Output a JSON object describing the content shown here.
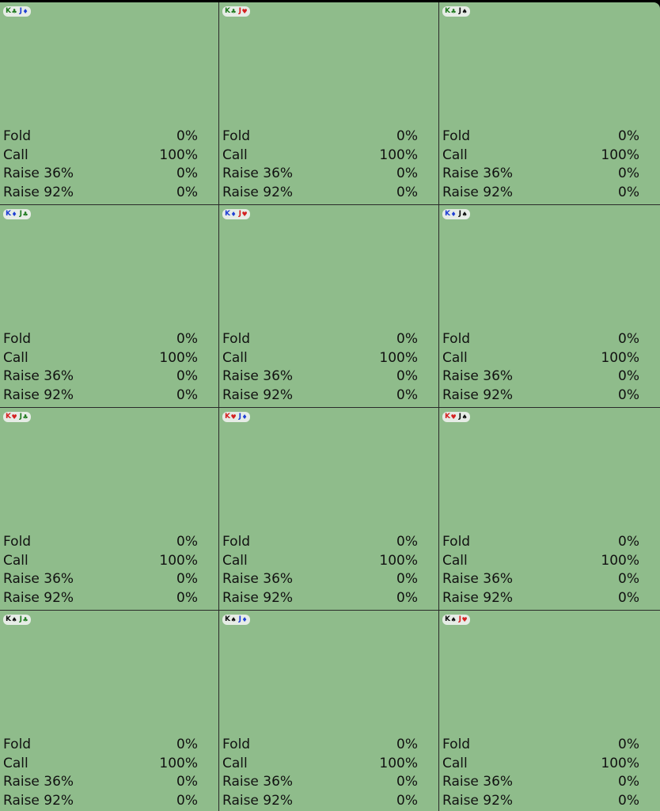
{
  "suit_symbols": {
    "clubs": "♣",
    "diamonds": "♦",
    "hearts": "♥",
    "spades": "♠"
  },
  "suit_colors": {
    "clubs": "#1f7a1f",
    "diamonds": "#1f3fd4",
    "hearts": "#d42020",
    "spades": "#111111"
  },
  "cell_background": "#8fbc8b",
  "cells": [
    {
      "hand": [
        {
          "rank": "K",
          "suit": "clubs"
        },
        {
          "rank": "J",
          "suit": "diamonds"
        }
      ],
      "actions": [
        {
          "label": "Fold",
          "pct": "0%"
        },
        {
          "label": "Call",
          "pct": "100%"
        },
        {
          "label": "Raise 36%",
          "pct": "0%"
        },
        {
          "label": "Raise 92%",
          "pct": "0%"
        }
      ]
    },
    {
      "hand": [
        {
          "rank": "K",
          "suit": "clubs"
        },
        {
          "rank": "J",
          "suit": "hearts"
        }
      ],
      "actions": [
        {
          "label": "Fold",
          "pct": "0%"
        },
        {
          "label": "Call",
          "pct": "100%"
        },
        {
          "label": "Raise 36%",
          "pct": "0%"
        },
        {
          "label": "Raise 92%",
          "pct": "0%"
        }
      ]
    },
    {
      "hand": [
        {
          "rank": "K",
          "suit": "clubs"
        },
        {
          "rank": "J",
          "suit": "spades"
        }
      ],
      "actions": [
        {
          "label": "Fold",
          "pct": "0%"
        },
        {
          "label": "Call",
          "pct": "100%"
        },
        {
          "label": "Raise 36%",
          "pct": "0%"
        },
        {
          "label": "Raise 92%",
          "pct": "0%"
        }
      ]
    },
    {
      "hand": [
        {
          "rank": "K",
          "suit": "diamonds"
        },
        {
          "rank": "J",
          "suit": "clubs"
        }
      ],
      "actions": [
        {
          "label": "Fold",
          "pct": "0%"
        },
        {
          "label": "Call",
          "pct": "100%"
        },
        {
          "label": "Raise 36%",
          "pct": "0%"
        },
        {
          "label": "Raise 92%",
          "pct": "0%"
        }
      ]
    },
    {
      "hand": [
        {
          "rank": "K",
          "suit": "diamonds"
        },
        {
          "rank": "J",
          "suit": "hearts"
        }
      ],
      "actions": [
        {
          "label": "Fold",
          "pct": "0%"
        },
        {
          "label": "Call",
          "pct": "100%"
        },
        {
          "label": "Raise 36%",
          "pct": "0%"
        },
        {
          "label": "Raise 92%",
          "pct": "0%"
        }
      ]
    },
    {
      "hand": [
        {
          "rank": "K",
          "suit": "diamonds"
        },
        {
          "rank": "J",
          "suit": "spades"
        }
      ],
      "actions": [
        {
          "label": "Fold",
          "pct": "0%"
        },
        {
          "label": "Call",
          "pct": "100%"
        },
        {
          "label": "Raise 36%",
          "pct": "0%"
        },
        {
          "label": "Raise 92%",
          "pct": "0%"
        }
      ]
    },
    {
      "hand": [
        {
          "rank": "K",
          "suit": "hearts"
        },
        {
          "rank": "J",
          "suit": "clubs"
        }
      ],
      "actions": [
        {
          "label": "Fold",
          "pct": "0%"
        },
        {
          "label": "Call",
          "pct": "100%"
        },
        {
          "label": "Raise 36%",
          "pct": "0%"
        },
        {
          "label": "Raise 92%",
          "pct": "0%"
        }
      ]
    },
    {
      "hand": [
        {
          "rank": "K",
          "suit": "hearts"
        },
        {
          "rank": "J",
          "suit": "diamonds"
        }
      ],
      "actions": [
        {
          "label": "Fold",
          "pct": "0%"
        },
        {
          "label": "Call",
          "pct": "100%"
        },
        {
          "label": "Raise 36%",
          "pct": "0%"
        },
        {
          "label": "Raise 92%",
          "pct": "0%"
        }
      ]
    },
    {
      "hand": [
        {
          "rank": "K",
          "suit": "hearts"
        },
        {
          "rank": "J",
          "suit": "spades"
        }
      ],
      "actions": [
        {
          "label": "Fold",
          "pct": "0%"
        },
        {
          "label": "Call",
          "pct": "100%"
        },
        {
          "label": "Raise 36%",
          "pct": "0%"
        },
        {
          "label": "Raise 92%",
          "pct": "0%"
        }
      ]
    },
    {
      "hand": [
        {
          "rank": "K",
          "suit": "spades"
        },
        {
          "rank": "J",
          "suit": "clubs"
        }
      ],
      "actions": [
        {
          "label": "Fold",
          "pct": "0%"
        },
        {
          "label": "Call",
          "pct": "100%"
        },
        {
          "label": "Raise 36%",
          "pct": "0%"
        },
        {
          "label": "Raise 92%",
          "pct": "0%"
        }
      ]
    },
    {
      "hand": [
        {
          "rank": "K",
          "suit": "spades"
        },
        {
          "rank": "J",
          "suit": "diamonds"
        }
      ],
      "actions": [
        {
          "label": "Fold",
          "pct": "0%"
        },
        {
          "label": "Call",
          "pct": "100%"
        },
        {
          "label": "Raise 36%",
          "pct": "0%"
        },
        {
          "label": "Raise 92%",
          "pct": "0%"
        }
      ]
    },
    {
      "hand": [
        {
          "rank": "K",
          "suit": "spades"
        },
        {
          "rank": "J",
          "suit": "hearts"
        }
      ],
      "actions": [
        {
          "label": "Fold",
          "pct": "0%"
        },
        {
          "label": "Call",
          "pct": "100%"
        },
        {
          "label": "Raise 36%",
          "pct": "0%"
        },
        {
          "label": "Raise 92%",
          "pct": "0%"
        }
      ]
    }
  ]
}
